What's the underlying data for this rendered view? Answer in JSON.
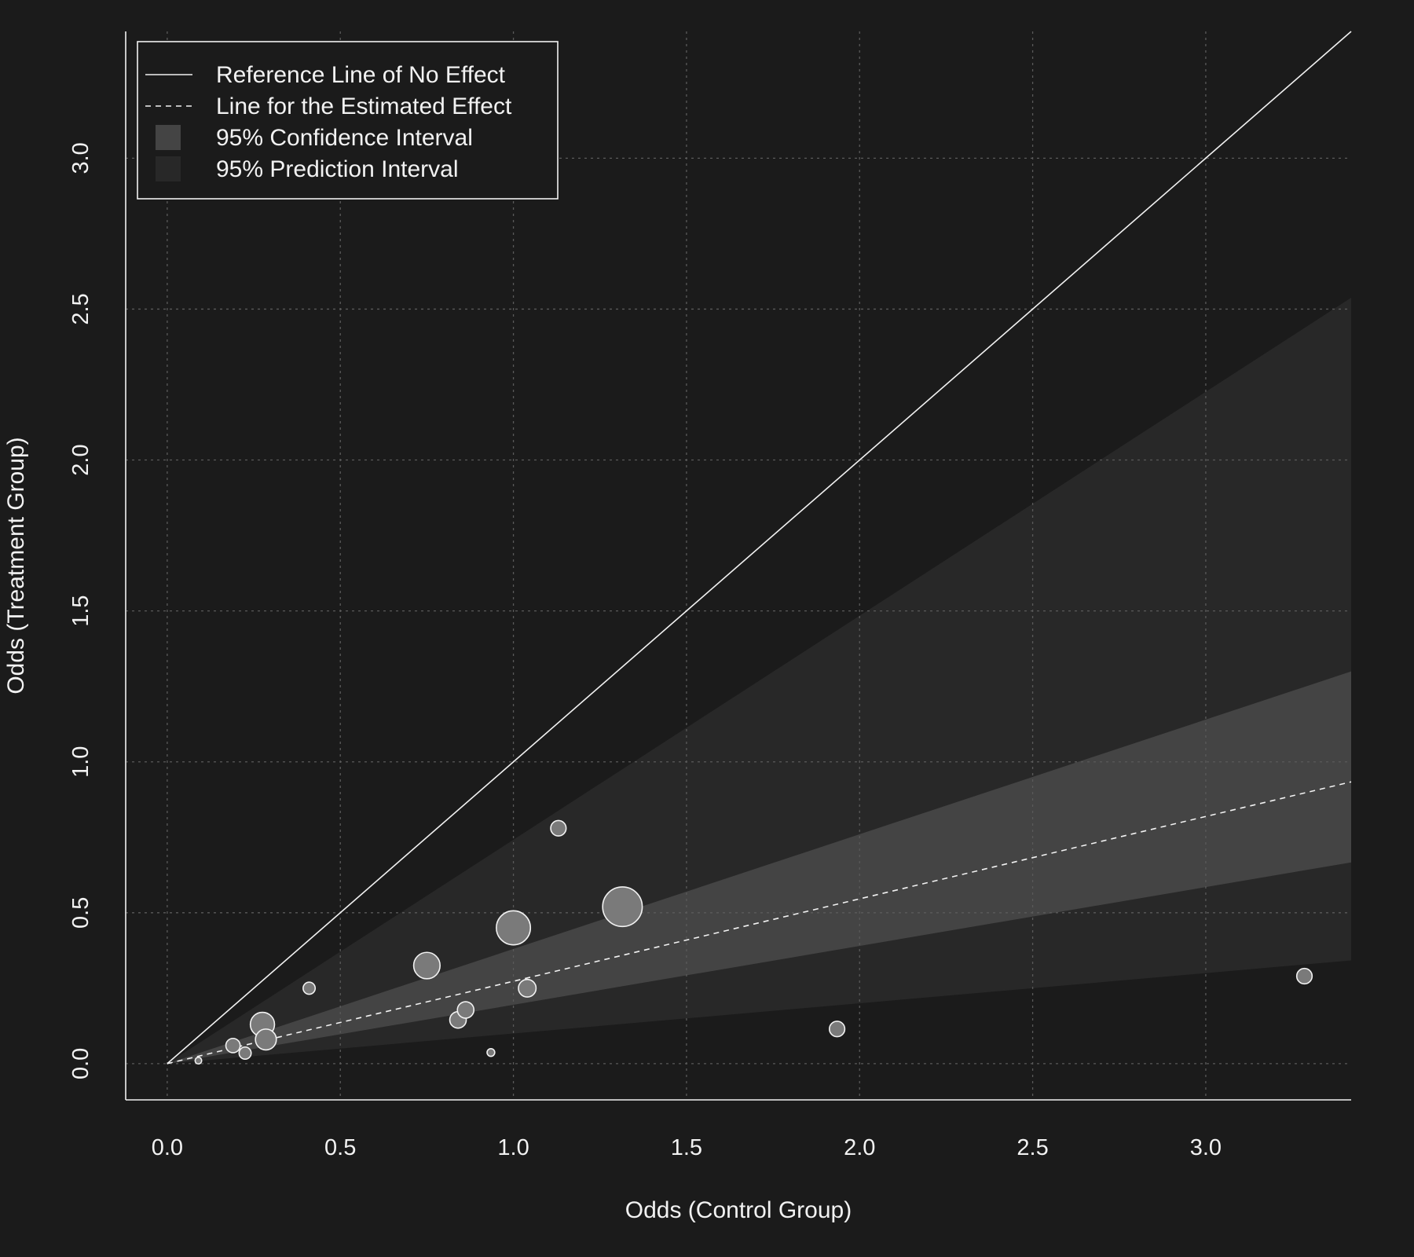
{
  "colors": {
    "background": "#1b1b1b",
    "foreground": "#f2f2f2",
    "grid": "#5a5a5a",
    "ci_band": "#444444",
    "pi_band": "#282828",
    "point_fill": "#7a7a7a"
  },
  "chart_data": {
    "type": "scatter",
    "title": "",
    "xlabel": "Odds (Control Group)",
    "ylabel": "Odds (Treatment Group)",
    "xlim": [
      -0.12,
      3.42
    ],
    "ylim": [
      -0.12,
      3.42
    ],
    "xticks": [
      0.0,
      0.5,
      1.0,
      1.5,
      2.0,
      2.5,
      3.0
    ],
    "yticks": [
      0.0,
      0.5,
      1.0,
      1.5,
      2.0,
      2.5,
      3.0
    ],
    "xtick_labels": [
      "0.0",
      "0.5",
      "1.0",
      "1.5",
      "2.0",
      "2.5",
      "3.0"
    ],
    "ytick_labels": [
      "0.0",
      "0.5",
      "1.0",
      "1.5",
      "2.0",
      "2.5",
      "3.0"
    ],
    "grid": true,
    "grid_style": "dotted",
    "legend_position": "top-left",
    "legend": [
      {
        "label": "Reference Line of No Effect",
        "symbol": "solid-line"
      },
      {
        "label": "Line for the Estimated Effect",
        "symbol": "dashed-line"
      },
      {
        "label": "95% Confidence Interval",
        "symbol": "filled-box",
        "color": "#444444"
      },
      {
        "label": "95% Prediction Interval",
        "symbol": "filled-box",
        "color": "#282828"
      }
    ],
    "reference_line_slope": 1.0,
    "estimated_effect_slope": 0.273,
    "confidence_interval_slopes": [
      0.195,
      0.38
    ],
    "prediction_interval_slopes": [
      0.1,
      0.742
    ],
    "points": [
      {
        "x": 0.09,
        "y": 0.01,
        "r": 0.3
      },
      {
        "x": 0.19,
        "y": 0.06,
        "r": 0.65
      },
      {
        "x": 0.225,
        "y": 0.035,
        "r": 0.55
      },
      {
        "x": 0.275,
        "y": 0.13,
        "r": 1.1
      },
      {
        "x": 0.285,
        "y": 0.08,
        "r": 0.95
      },
      {
        "x": 0.41,
        "y": 0.25,
        "r": 0.55
      },
      {
        "x": 0.75,
        "y": 0.325,
        "r": 1.2
      },
      {
        "x": 0.84,
        "y": 0.145,
        "r": 0.75
      },
      {
        "x": 0.862,
        "y": 0.178,
        "r": 0.75
      },
      {
        "x": 0.935,
        "y": 0.037,
        "r": 0.35
      },
      {
        "x": 1.0,
        "y": 0.45,
        "r": 1.55
      },
      {
        "x": 1.04,
        "y": 0.25,
        "r": 0.8
      },
      {
        "x": 1.13,
        "y": 0.78,
        "r": 0.7
      },
      {
        "x": 1.315,
        "y": 0.52,
        "r": 1.8
      },
      {
        "x": 1.935,
        "y": 0.115,
        "r": 0.7
      },
      {
        "x": 3.285,
        "y": 0.29,
        "r": 0.7
      }
    ]
  }
}
